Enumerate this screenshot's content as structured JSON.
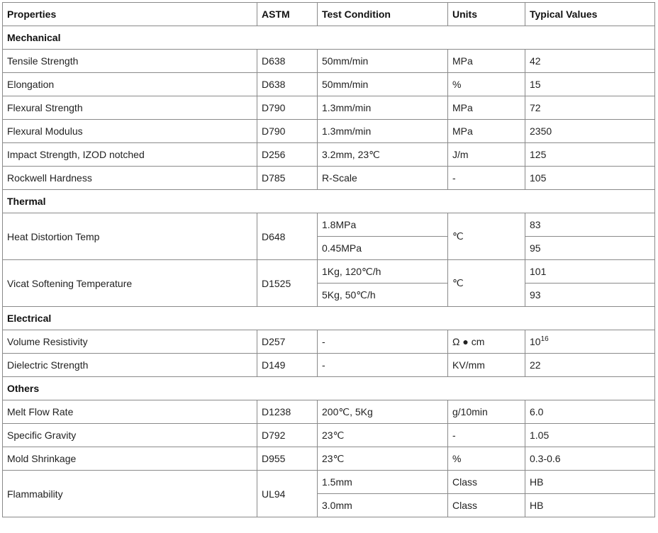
{
  "headers": [
    "Properties",
    "ASTM",
    "Test Condition",
    "Units",
    "Typical Values"
  ],
  "sections": [
    {
      "title": "Mechanical",
      "rows": [
        {
          "property": "Tensile Strength",
          "astm": "D638",
          "conditions": [
            "50mm/min"
          ],
          "units": "MPa",
          "values": [
            "42"
          ]
        },
        {
          "property": "Elongation",
          "astm": "D638",
          "conditions": [
            "50mm/min"
          ],
          "units": "%",
          "values": [
            "15"
          ]
        },
        {
          "property": "Flexural Strength",
          "astm": "D790",
          "conditions": [
            "1.3mm/min"
          ],
          "units": "MPa",
          "values": [
            "72"
          ]
        },
        {
          "property": "Flexural Modulus",
          "astm": "D790",
          "conditions": [
            "1.3mm/min"
          ],
          "units": "MPa",
          "values": [
            "2350"
          ]
        },
        {
          "property": "Impact Strength, IZOD notched",
          "astm": "D256",
          "conditions": [
            "3.2mm, 23℃"
          ],
          "units": "J/m",
          "values": [
            "125"
          ]
        },
        {
          "property": "Rockwell Hardness",
          "astm": "D785",
          "conditions": [
            "R-Scale"
          ],
          "units": "-",
          "values": [
            "105"
          ]
        }
      ]
    },
    {
      "title": "Thermal",
      "rows": [
        {
          "property": "Heat Distortion Temp",
          "astm": "D648",
          "conditions": [
            "1.8MPa",
            "0.45MPa"
          ],
          "units": "℃",
          "values": [
            "83",
            "95"
          ]
        },
        {
          "property": "Vicat Softening Temperature",
          "astm": "D1525",
          "conditions": [
            "1Kg, 120℃/h",
            "5Kg, 50℃/h"
          ],
          "units": "℃",
          "values": [
            "101",
            "93"
          ]
        }
      ]
    },
    {
      "title": "Electrical",
      "rows": [
        {
          "property": "Volume Resistivity",
          "astm": "D257",
          "conditions": [
            "-"
          ],
          "units": "Ω ● cm",
          "values": [
            "10"
          ],
          "value_exponent": "16"
        },
        {
          "property": "Dielectric Strength",
          "astm": "D149",
          "conditions": [
            "-"
          ],
          "units": "KV/mm",
          "values": [
            "22"
          ]
        }
      ]
    },
    {
      "title": "Others",
      "rows": [
        {
          "property": "Melt Flow Rate",
          "astm": "D1238",
          "conditions": [
            "200℃, 5Kg"
          ],
          "units": "g/10min",
          "values": [
            "6.0"
          ]
        },
        {
          "property": "Specific Gravity",
          "astm": "D792",
          "conditions": [
            "23℃"
          ],
          "units": "-",
          "values": [
            "1.05"
          ]
        },
        {
          "property": "Mold Shrinkage",
          "astm": "D955",
          "conditions": [
            "23℃"
          ],
          "units": "%",
          "values": [
            "0.3-0.6"
          ]
        },
        {
          "property": "Flammability",
          "astm": "UL94",
          "conditions": [
            "1.5mm",
            "3.0mm"
          ],
          "units": [
            "Class",
            "Class"
          ],
          "values": [
            "HB",
            "HB"
          ]
        }
      ]
    }
  ]
}
